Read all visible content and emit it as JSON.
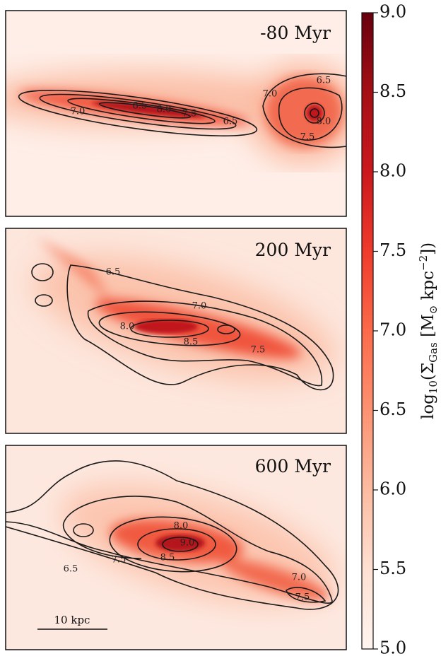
{
  "panels": [
    {
      "label": "-80 Myr",
      "contour_labels": [
        "7.0",
        "8.5",
        "8.0",
        "7.5",
        "6.5",
        "6.5",
        "7.0",
        "8.0",
        "7.5"
      ]
    },
    {
      "label": "200 Myr",
      "contour_labels": [
        "6.5",
        "7.0",
        "8.0",
        "8.5",
        "7.5"
      ]
    },
    {
      "label": "600 Myr",
      "contour_labels": [
        "8.0",
        "9.0",
        "8.5",
        "7.5",
        "6.5",
        "7.0",
        "7.5"
      ],
      "scale_bar": "10 kpc"
    }
  ],
  "colorbar": {
    "label": [
      "log",
      "10",
      "(Σ",
      "Gas",
      " [M",
      "⊙",
      " kpc",
      "−2",
      "])"
    ],
    "lim": [
      5,
      9
    ],
    "ticks": [
      {
        "value": 5,
        "label": "5.0"
      },
      {
        "value": 5.5,
        "label": "5.5"
      },
      {
        "value": 6,
        "label": "6.0"
      },
      {
        "value": 6.5,
        "label": "6.5"
      },
      {
        "value": 7,
        "label": "7.0"
      },
      {
        "value": 7.5,
        "label": "7.5"
      },
      {
        "value": 8,
        "label": "8.0"
      },
      {
        "value": 8.5,
        "label": "8.5"
      },
      {
        "value": 9,
        "label": "9.0"
      }
    ]
  }
}
